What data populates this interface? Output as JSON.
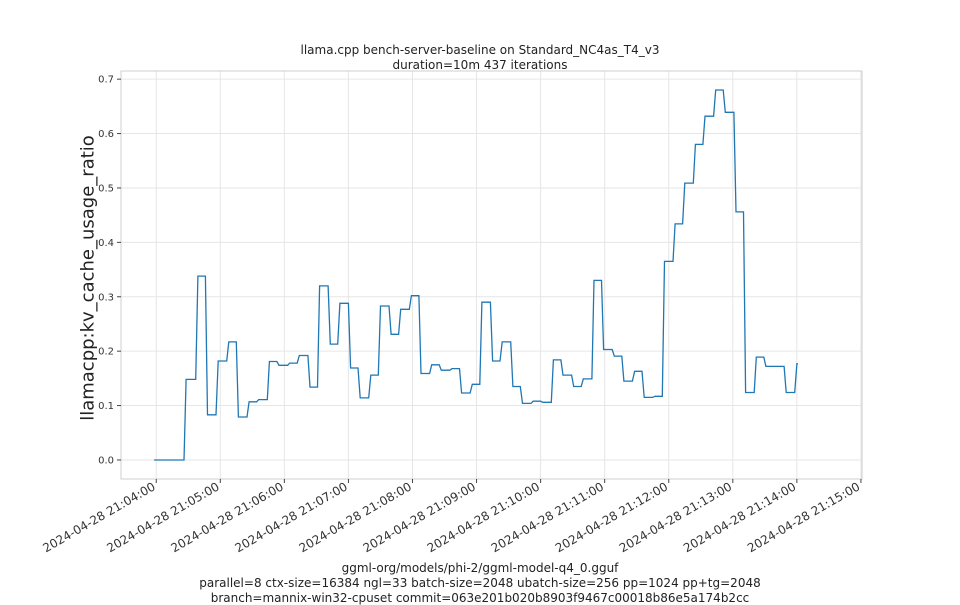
{
  "chart_data": {
    "type": "line",
    "title": "llama.cpp bench-server-baseline on Standard_NC4as_T4_v3",
    "subtitle": "duration=10m 437 iterations",
    "xlabel": "",
    "ylabel": "llamacpp:kv_cache_usage_ratio",
    "footer": [
      "ggml-org/models/phi-2/ggml-model-q4_0.gguf",
      "parallel=8 ctx-size=16384 ngl=33 batch-size=2048 ubatch-size=256 pp=1024 pp+tg=2048",
      "branch=mannix-win32-cpuset commit=063e201b020b8903f9467c00018b86e5a174b2cc"
    ],
    "x_ticks": [
      "2024-04-28 21:04:00",
      "2024-04-28 21:05:00",
      "2024-04-28 21:06:00",
      "2024-04-28 21:07:00",
      "2024-04-28 21:08:00",
      "2024-04-28 21:09:00",
      "2024-04-28 21:10:00",
      "2024-04-28 21:11:00",
      "2024-04-28 21:12:00",
      "2024-04-28 21:13:00",
      "2024-04-28 21:14:00",
      "2024-04-28 21:15:00"
    ],
    "xlim": [
      "2024-04-28 21:03:27",
      "2024-04-28 21:15:01"
    ],
    "y_ticks": [
      "0.0",
      "0.1",
      "0.2",
      "0.3",
      "0.4",
      "0.5",
      "0.6",
      "0.7"
    ],
    "ylim": [
      -0.035,
      0.715
    ],
    "grid": true,
    "line_color": "#1f77b4",
    "series": [
      {
        "points": [
          [
            "2024-04-28 21:03:58",
            0.0
          ],
          [
            "2024-04-28 21:04:26",
            0.0
          ],
          [
            "2024-04-28 21:04:28",
            0.148
          ],
          [
            "2024-04-28 21:04:37",
            0.148
          ],
          [
            "2024-04-28 21:04:39",
            0.338
          ],
          [
            "2024-04-28 21:04:46",
            0.338
          ],
          [
            "2024-04-28 21:04:48",
            0.083
          ],
          [
            "2024-04-28 21:04:56",
            0.083
          ],
          [
            "2024-04-28 21:04:58",
            0.182
          ],
          [
            "2024-04-28 21:05:06",
            0.182
          ],
          [
            "2024-04-28 21:05:08",
            0.217
          ],
          [
            "2024-04-28 21:05:15",
            0.217
          ],
          [
            "2024-04-28 21:05:17",
            0.079
          ],
          [
            "2024-04-28 21:05:25",
            0.079
          ],
          [
            "2024-04-28 21:05:27",
            0.107
          ],
          [
            "2024-04-28 21:05:34",
            0.107
          ],
          [
            "2024-04-28 21:05:36",
            0.111
          ],
          [
            "2024-04-28 21:05:44",
            0.111
          ],
          [
            "2024-04-28 21:05:46",
            0.181
          ],
          [
            "2024-04-28 21:05:53",
            0.181
          ],
          [
            "2024-04-28 21:05:55",
            0.174
          ],
          [
            "2024-04-28 21:06:03",
            0.174
          ],
          [
            "2024-04-28 21:06:05",
            0.178
          ],
          [
            "2024-04-28 21:06:12",
            0.178
          ],
          [
            "2024-04-28 21:06:14",
            0.192
          ],
          [
            "2024-04-28 21:06:22",
            0.192
          ],
          [
            "2024-04-28 21:06:24",
            0.134
          ],
          [
            "2024-04-28 21:06:31",
            0.134
          ],
          [
            "2024-04-28 21:06:33",
            0.32
          ],
          [
            "2024-04-28 21:06:41",
            0.32
          ],
          [
            "2024-04-28 21:06:43",
            0.213
          ],
          [
            "2024-04-28 21:06:50",
            0.213
          ],
          [
            "2024-04-28 21:06:52",
            0.288
          ],
          [
            "2024-04-28 21:07:00",
            0.288
          ],
          [
            "2024-04-28 21:07:02",
            0.169
          ],
          [
            "2024-04-28 21:07:09",
            0.169
          ],
          [
            "2024-04-28 21:07:11",
            0.114
          ],
          [
            "2024-04-28 21:07:19",
            0.114
          ],
          [
            "2024-04-28 21:07:21",
            0.156
          ],
          [
            "2024-04-28 21:07:28",
            0.156
          ],
          [
            "2024-04-28 21:07:30",
            0.283
          ],
          [
            "2024-04-28 21:07:38",
            0.283
          ],
          [
            "2024-04-28 21:07:40",
            0.231
          ],
          [
            "2024-04-28 21:07:47",
            0.231
          ],
          [
            "2024-04-28 21:07:49",
            0.277
          ],
          [
            "2024-04-28 21:07:57",
            0.277
          ],
          [
            "2024-04-28 21:07:59",
            0.302
          ],
          [
            "2024-04-28 21:08:06",
            0.302
          ],
          [
            "2024-04-28 21:08:08",
            0.159
          ],
          [
            "2024-04-28 21:08:16",
            0.159
          ],
          [
            "2024-04-28 21:08:18",
            0.175
          ],
          [
            "2024-04-28 21:08:25",
            0.175
          ],
          [
            "2024-04-28 21:08:27",
            0.165
          ],
          [
            "2024-04-28 21:08:35",
            0.165
          ],
          [
            "2024-04-28 21:08:37",
            0.168
          ],
          [
            "2024-04-28 21:08:44",
            0.168
          ],
          [
            "2024-04-28 21:08:46",
            0.123
          ],
          [
            "2024-04-28 21:08:54",
            0.123
          ],
          [
            "2024-04-28 21:08:56",
            0.139
          ],
          [
            "2024-04-28 21:09:03",
            0.139
          ],
          [
            "2024-04-28 21:09:05",
            0.29
          ],
          [
            "2024-04-28 21:09:13",
            0.29
          ],
          [
            "2024-04-28 21:09:15",
            0.182
          ],
          [
            "2024-04-28 21:09:22",
            0.182
          ],
          [
            "2024-04-28 21:09:24",
            0.217
          ],
          [
            "2024-04-28 21:09:32",
            0.217
          ],
          [
            "2024-04-28 21:09:34",
            0.135
          ],
          [
            "2024-04-28 21:09:41",
            0.135
          ],
          [
            "2024-04-28 21:09:43",
            0.104
          ],
          [
            "2024-04-28 21:09:51",
            0.104
          ],
          [
            "2024-04-28 21:09:53",
            0.108
          ],
          [
            "2024-04-28 21:10:00",
            0.108
          ],
          [
            "2024-04-28 21:10:02",
            0.106
          ],
          [
            "2024-04-28 21:10:10",
            0.106
          ],
          [
            "2024-04-28 21:10:12",
            0.184
          ],
          [
            "2024-04-28 21:10:19",
            0.184
          ],
          [
            "2024-04-28 21:10:21",
            0.156
          ],
          [
            "2024-04-28 21:10:29",
            0.156
          ],
          [
            "2024-04-28 21:10:31",
            0.135
          ],
          [
            "2024-04-28 21:10:38",
            0.135
          ],
          [
            "2024-04-28 21:10:40",
            0.149
          ],
          [
            "2024-04-28 21:10:48",
            0.149
          ],
          [
            "2024-04-28 21:10:50",
            0.33
          ],
          [
            "2024-04-28 21:10:57",
            0.33
          ],
          [
            "2024-04-28 21:10:59",
            0.203
          ],
          [
            "2024-04-28 21:11:07",
            0.203
          ],
          [
            "2024-04-28 21:11:09",
            0.191
          ],
          [
            "2024-04-28 21:11:16",
            0.191
          ],
          [
            "2024-04-28 21:11:18",
            0.145
          ],
          [
            "2024-04-28 21:11:26",
            0.145
          ],
          [
            "2024-04-28 21:11:28",
            0.163
          ],
          [
            "2024-04-28 21:11:35",
            0.163
          ],
          [
            "2024-04-28 21:11:37",
            0.115
          ],
          [
            "2024-04-28 21:11:45",
            0.115
          ],
          [
            "2024-04-28 21:11:47",
            0.117
          ],
          [
            "2024-04-28 21:11:54",
            0.117
          ],
          [
            "2024-04-28 21:11:56",
            0.365
          ],
          [
            "2024-04-28 21:12:04",
            0.365
          ],
          [
            "2024-04-28 21:12:06",
            0.434
          ],
          [
            "2024-04-28 21:12:13",
            0.434
          ],
          [
            "2024-04-28 21:12:15",
            0.509
          ],
          [
            "2024-04-28 21:12:23",
            0.509
          ],
          [
            "2024-04-28 21:12:25",
            0.58
          ],
          [
            "2024-04-28 21:12:32",
            0.58
          ],
          [
            "2024-04-28 21:12:34",
            0.632
          ],
          [
            "2024-04-28 21:12:42",
            0.632
          ],
          [
            "2024-04-28 21:12:44",
            0.68
          ],
          [
            "2024-04-28 21:12:51",
            0.68
          ],
          [
            "2024-04-28 21:12:53",
            0.639
          ],
          [
            "2024-04-28 21:13:01",
            0.639
          ],
          [
            "2024-04-28 21:13:03",
            0.456
          ],
          [
            "2024-04-28 21:13:10",
            0.456
          ],
          [
            "2024-04-28 21:13:12",
            0.124
          ],
          [
            "2024-04-28 21:13:20",
            0.124
          ],
          [
            "2024-04-28 21:13:22",
            0.189
          ],
          [
            "2024-04-28 21:13:29",
            0.189
          ],
          [
            "2024-04-28 21:13:31",
            0.172
          ],
          [
            "2024-04-28 21:13:48",
            0.172
          ],
          [
            "2024-04-28 21:13:50",
            0.124
          ],
          [
            "2024-04-28 21:13:58",
            0.124
          ],
          [
            "2024-04-28 21:14:00",
            0.177
          ],
          [
            "2024-04-28 21:14:01",
            0.177
          ]
        ]
      }
    ]
  }
}
